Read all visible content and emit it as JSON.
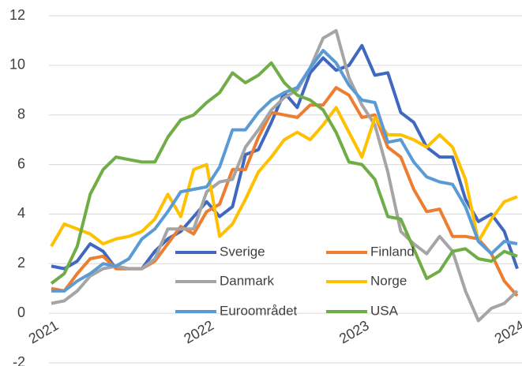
{
  "chart_data": {
    "type": "line",
    "categories": [
      "2021",
      null,
      null,
      null,
      null,
      null,
      null,
      null,
      null,
      null,
      null,
      null,
      "2022",
      null,
      null,
      null,
      null,
      null,
      null,
      null,
      null,
      null,
      null,
      null,
      "2023",
      null,
      null,
      null,
      null,
      null,
      null,
      null,
      null,
      null,
      null,
      null,
      "2024"
    ],
    "ylim": [
      -2,
      12
    ],
    "yticks": [
      -2,
      0,
      2,
      4,
      6,
      8,
      10,
      12
    ],
    "grid": true,
    "legend": "inside",
    "series": [
      {
        "name": "Sverige",
        "color": "#4068c0",
        "values": [
          1.9,
          1.8,
          2.1,
          2.8,
          2.5,
          1.8,
          1.8,
          1.8,
          2.5,
          3.0,
          3.3,
          3.9,
          4.5,
          3.9,
          4.3,
          6.4,
          6.6,
          7.7,
          8.9,
          8.3,
          9.7,
          10.3,
          9.8,
          10.0,
          10.8,
          9.6,
          9.7,
          8.1,
          7.7,
          6.7,
          6.3,
          6.3,
          4.6,
          3.7,
          4.0,
          3.3,
          1.8
        ]
      },
      {
        "name": "Finland",
        "color": "#ed7d31",
        "values": [
          1.0,
          0.9,
          1.6,
          2.2,
          2.3,
          1.8,
          1.8,
          1.8,
          2.1,
          2.8,
          3.5,
          3.2,
          4.1,
          4.4,
          5.8,
          5.8,
          7.1,
          8.1,
          8.0,
          7.9,
          8.4,
          8.4,
          9.1,
          8.8,
          7.9,
          8.0,
          6.7,
          6.3,
          5.0,
          4.1,
          4.2,
          3.1,
          3.1,
          3.0,
          2.4,
          1.3,
          0.7
        ]
      },
      {
        "name": "Danmark",
        "color": "#a5a5a5",
        "values": [
          0.4,
          0.5,
          0.9,
          1.5,
          1.8,
          1.9,
          1.8,
          1.8,
          2.2,
          3.4,
          3.4,
          3.4,
          4.9,
          5.3,
          5.4,
          6.7,
          7.4,
          8.2,
          8.7,
          9.0,
          9.9,
          11.1,
          11.4,
          9.5,
          8.4,
          7.6,
          5.7,
          3.3,
          2.8,
          2.4,
          3.1,
          2.5,
          0.9,
          -0.3,
          0.2,
          0.4,
          0.9
        ]
      },
      {
        "name": "Norge",
        "color": "#ffc000",
        "values": [
          2.7,
          3.6,
          3.4,
          3.2,
          2.8,
          3.0,
          3.1,
          3.3,
          3.8,
          4.8,
          3.9,
          5.8,
          6.0,
          3.1,
          3.6,
          4.6,
          5.7,
          6.3,
          7.0,
          7.3,
          7.0,
          7.6,
          8.3,
          7.3,
          6.3,
          7.9,
          7.2,
          7.2,
          7.0,
          6.7,
          7.2,
          6.7,
          5.4,
          2.9,
          3.8,
          4.5,
          4.7
        ]
      },
      {
        "name": "Euroområdet",
        "color": "#5b9bd5",
        "values": [
          0.9,
          0.9,
          1.3,
          1.6,
          2.0,
          1.9,
          2.2,
          3.0,
          3.4,
          4.1,
          4.9,
          5.0,
          5.1,
          5.9,
          7.4,
          7.4,
          8.1,
          8.6,
          8.9,
          9.1,
          9.9,
          10.6,
          10.1,
          9.2,
          8.6,
          8.5,
          6.9,
          7.0,
          6.1,
          5.5,
          5.3,
          5.2,
          4.3,
          2.9,
          2.4,
          2.9,
          2.8
        ]
      },
      {
        "name": "USA",
        "color": "#70ad47",
        "values": [
          1.2,
          1.6,
          2.7,
          4.8,
          5.8,
          6.3,
          6.2,
          6.1,
          6.1,
          7.1,
          7.8,
          8.0,
          8.5,
          8.9,
          9.7,
          9.3,
          9.6,
          10.1,
          9.3,
          8.8,
          8.6,
          8.2,
          7.3,
          6.1,
          6.0,
          5.4,
          3.9,
          3.8,
          2.6,
          1.4,
          1.7,
          2.5,
          2.6,
          2.2,
          2.1,
          2.5,
          2.3
        ]
      }
    ]
  }
}
